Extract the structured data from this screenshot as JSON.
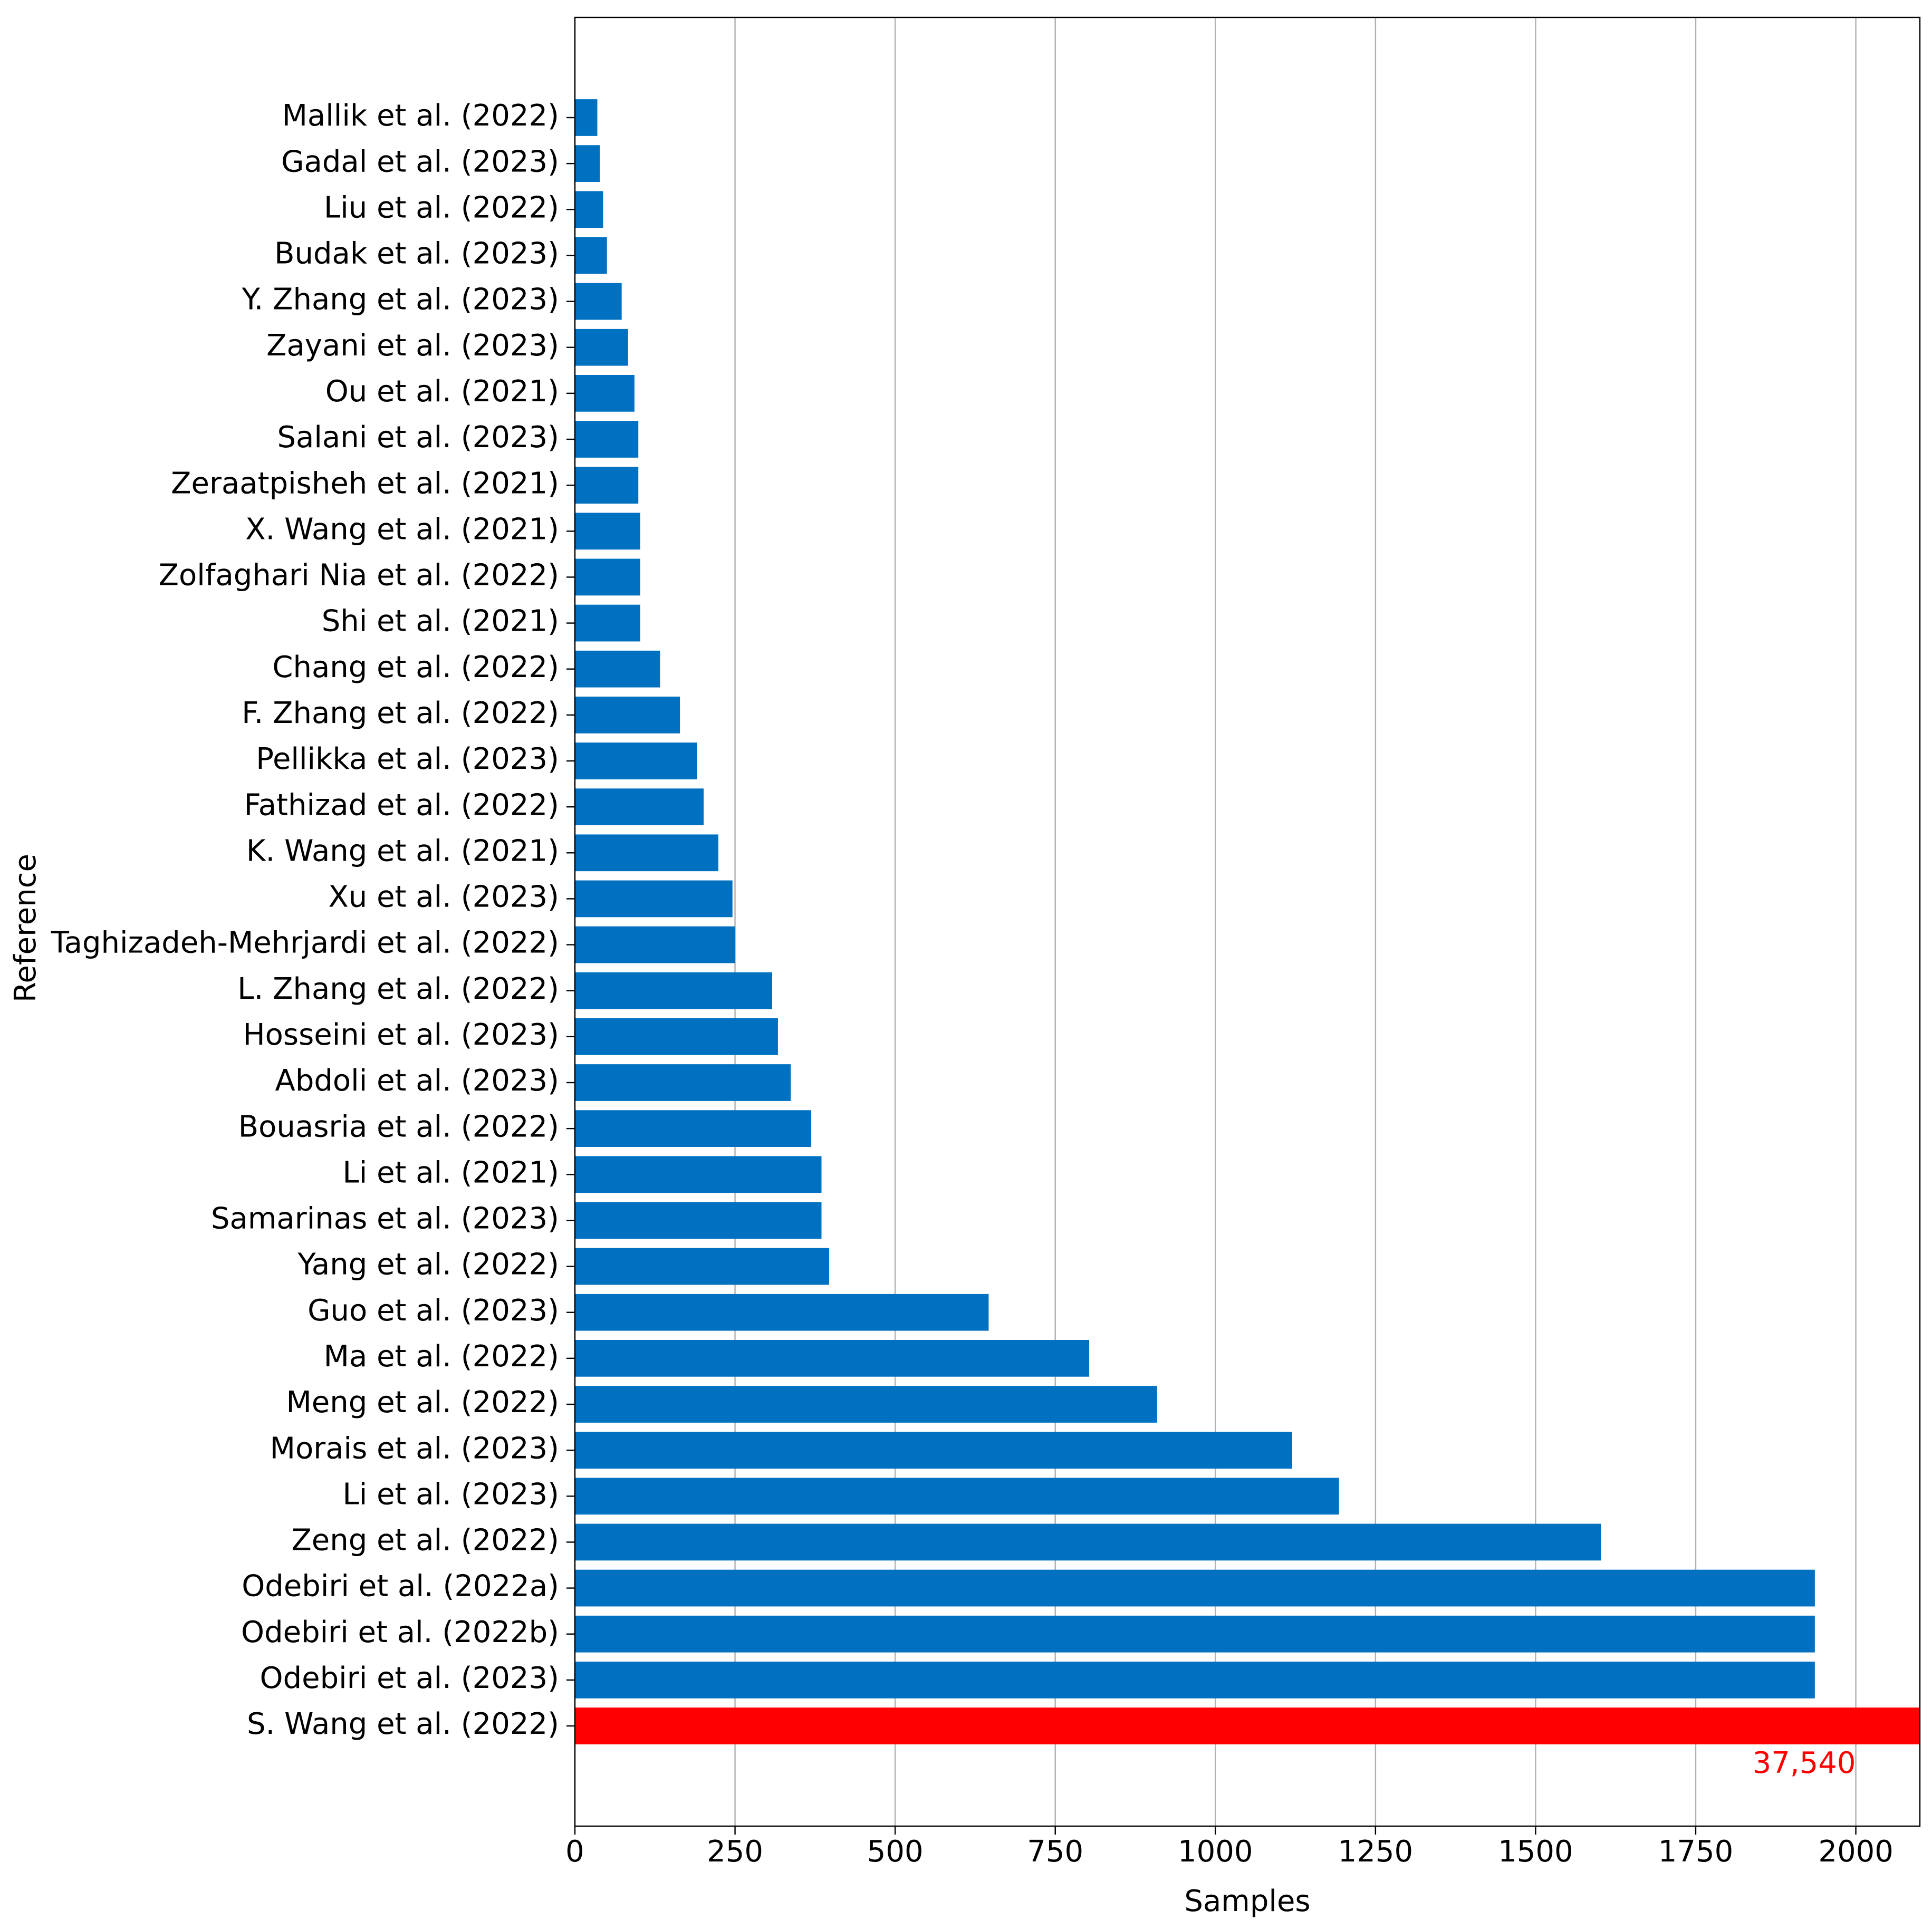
{
  "chart_data": {
    "type": "barh",
    "x_label": "Samples",
    "y_label": "Reference",
    "categories": [
      "Mallik et al. (2022)",
      "Gadal et al. (2023)",
      "Liu et al. (2022)",
      "Budak et al. (2023)",
      "Y. Zhang et al. (2023)",
      "Zayani et al. (2023)",
      "Ou et al. (2021)",
      "Salani et al. (2023)",
      "Zeraatpisheh et al. (2021)",
      "X. Wang et al. (2021)",
      "Zolfaghari Nia et al. (2022)",
      "Shi et al. (2021)",
      "Chang et al. (2022)",
      "F. Zhang et al. (2022)",
      "Pellikka et al. (2023)",
      "Fathizad et al. (2022)",
      "K. Wang et al. (2021)",
      "Xu et al. (2023)",
      "Taghizadeh-Mehrjardi et al. (2022)",
      "L. Zhang et al. (2022)",
      "Hosseini et al. (2023)",
      "Abdoli et al. (2023)",
      "Bouasria et al. (2022)",
      "Li et al. (2021)",
      "Samarinas et al. (2023)",
      "Yang et al. (2022)",
      "Guo et al. (2023)",
      "Ma et al. (2022)",
      "Meng et al. (2022)",
      "Morais et al. (2023)",
      "Li et al. (2023)",
      "Zeng et al. (2022)",
      "Odebiri et al. (2022a)",
      "Odebiri et al. (2022b)",
      "Odebiri et al. (2023)",
      "S. Wang et al. (2022)"
    ],
    "values": [
      35,
      39,
      44,
      50,
      73,
      83,
      93,
      99,
      99,
      102,
      102,
      102,
      133,
      164,
      191,
      201,
      224,
      246,
      250,
      308,
      317,
      337,
      369,
      385,
      385,
      397,
      646,
      803,
      909,
      1120,
      1193,
      1602,
      1936,
      1936,
      1936,
      37540
    ],
    "value_labels": [
      null,
      null,
      null,
      null,
      null,
      null,
      null,
      null,
      null,
      null,
      null,
      null,
      null,
      null,
      null,
      null,
      null,
      null,
      null,
      null,
      null,
      null,
      null,
      null,
      null,
      null,
      null,
      null,
      null,
      null,
      null,
      null,
      null,
      null,
      null,
      "37,540"
    ],
    "colors": [
      "#0070c0",
      "#0070c0",
      "#0070c0",
      "#0070c0",
      "#0070c0",
      "#0070c0",
      "#0070c0",
      "#0070c0",
      "#0070c0",
      "#0070c0",
      "#0070c0",
      "#0070c0",
      "#0070c0",
      "#0070c0",
      "#0070c0",
      "#0070c0",
      "#0070c0",
      "#0070c0",
      "#0070c0",
      "#0070c0",
      "#0070c0",
      "#0070c0",
      "#0070c0",
      "#0070c0",
      "#0070c0",
      "#0070c0",
      "#0070c0",
      "#0070c0",
      "#0070c0",
      "#0070c0",
      "#0070c0",
      "#0070c0",
      "#0070c0",
      "#0070c0",
      "#0070c0",
      "#ff0000"
    ],
    "xlim": [
      0,
      2100
    ],
    "xticks": [
      0,
      250,
      500,
      750,
      1000,
      1250,
      1500,
      1750,
      2000
    ],
    "grid": true
  }
}
